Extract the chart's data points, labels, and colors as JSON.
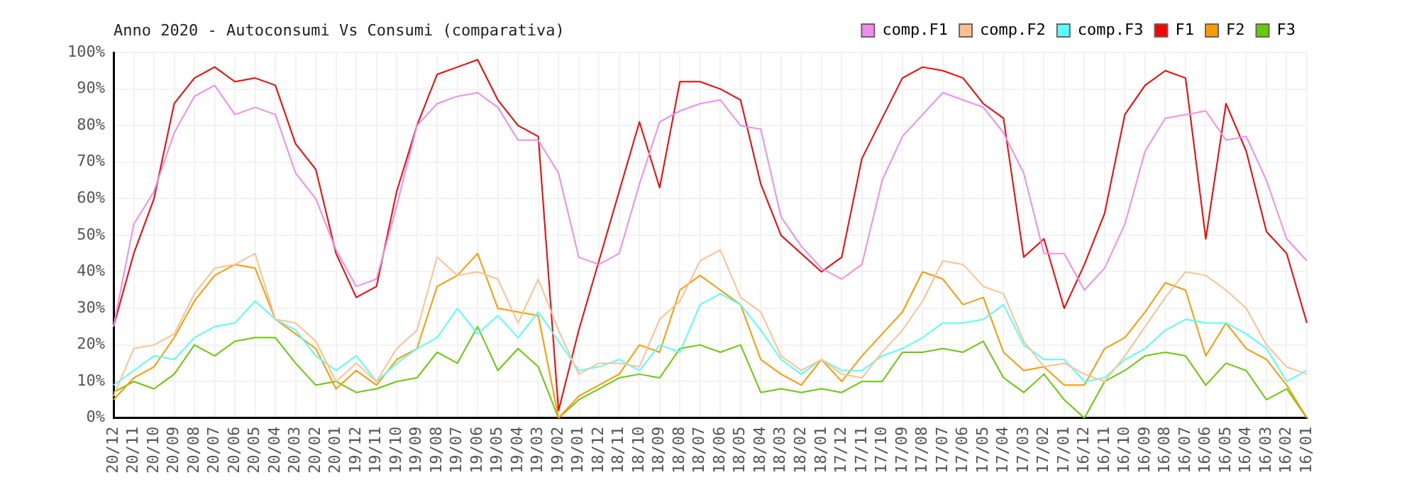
{
  "chart_data": {
    "type": "line",
    "title": "Anno 2020 - Autoconsumi Vs Consumi (comparativa)",
    "categories": [
      "20/12",
      "20/11",
      "20/10",
      "20/09",
      "20/08",
      "20/07",
      "20/06",
      "20/05",
      "20/04",
      "20/03",
      "20/02",
      "20/01",
      "19/12",
      "19/11",
      "19/10",
      "19/09",
      "19/08",
      "19/07",
      "19/06",
      "19/05",
      "19/04",
      "19/03",
      "19/02",
      "19/01",
      "18/12",
      "18/11",
      "18/10",
      "18/09",
      "18/08",
      "18/07",
      "18/06",
      "18/05",
      "18/04",
      "18/03",
      "18/02",
      "18/01",
      "17/12",
      "17/11",
      "17/10",
      "17/09",
      "17/08",
      "17/07",
      "17/06",
      "17/05",
      "17/04",
      "17/03",
      "17/02",
      "17/01",
      "16/12",
      "16/11",
      "16/10",
      "16/09",
      "16/08",
      "16/07",
      "16/06",
      "16/05",
      "16/04",
      "16/03",
      "16/02",
      "16/01"
    ],
    "series": [
      {
        "name": "comp.F1",
        "color": "#f08cf0",
        "values": [
          25,
          53,
          62,
          78,
          88,
          91,
          83,
          85,
          83,
          67,
          60,
          46,
          36,
          38,
          58,
          80,
          86,
          88,
          89,
          85,
          76,
          76,
          67,
          44,
          42,
          45,
          64,
          81,
          84,
          86,
          87,
          80,
          79,
          55,
          47,
          41,
          38,
          42,
          65,
          77,
          83,
          89,
          87,
          85,
          78,
          67,
          45,
          45,
          35,
          41,
          53,
          73,
          82,
          83,
          84,
          76,
          77,
          65,
          49,
          43
        ]
      },
      {
        "name": "comp.F2",
        "color": "#ffc090",
        "values": [
          6,
          19,
          20,
          23,
          34,
          41,
          42,
          45,
          27,
          26,
          21,
          10,
          15,
          10,
          19,
          24,
          44,
          39,
          40,
          38,
          26,
          38,
          24,
          12,
          15,
          15,
          14,
          27,
          32,
          43,
          46,
          33,
          29,
          17,
          13,
          16,
          12,
          11,
          18,
          24,
          32,
          43,
          42,
          36,
          34,
          21,
          14,
          15,
          12,
          10,
          17,
          25,
          33,
          40,
          39,
          35,
          30,
          20,
          14,
          12
        ]
      },
      {
        "name": "comp.F3",
        "color": "#55ffff",
        "values": [
          9,
          13,
          17,
          16,
          22,
          25,
          26,
          32,
          27,
          24,
          17,
          13,
          17,
          10,
          15,
          19,
          22,
          30,
          23,
          28,
          22,
          29,
          21,
          13,
          14,
          16,
          13,
          20,
          18,
          31,
          34,
          31,
          24,
          16,
          12,
          16,
          13,
          13,
          17,
          19,
          22,
          26,
          26,
          27,
          31,
          20,
          16,
          16,
          10,
          11,
          16,
          19,
          24,
          27,
          26,
          26,
          23,
          19,
          10,
          13
        ]
      },
      {
        "name": "F1",
        "color": "#ff0000",
        "values": [
          25,
          45,
          60,
          86,
          93,
          96,
          92,
          93,
          91,
          75,
          68,
          45,
          33,
          36,
          62,
          80,
          94,
          96,
          98,
          87,
          80,
          77,
          2,
          24,
          43,
          62,
          81,
          63,
          92,
          92,
          90,
          87,
          64,
          50,
          45,
          40,
          44,
          71,
          82,
          93,
          96,
          95,
          93,
          86,
          82,
          44,
          49,
          30,
          42,
          56,
          83,
          91,
          95,
          93,
          49,
          86,
          73,
          51,
          45,
          26
        ]
      },
      {
        "name": "F2",
        "color": "#ff9900",
        "values": [
          5,
          11,
          14,
          22,
          32,
          39,
          42,
          41,
          27,
          23,
          19,
          8,
          13,
          9,
          16,
          19,
          36,
          39,
          45,
          30,
          29,
          28,
          0,
          6,
          9,
          12,
          20,
          18,
          35,
          39,
          35,
          31,
          16,
          12,
          9,
          16,
          10,
          17,
          23,
          29,
          40,
          38,
          31,
          33,
          18,
          13,
          14,
          9,
          9,
          19,
          22,
          29,
          37,
          35,
          17,
          26,
          19,
          16,
          9,
          0
        ]
      },
      {
        "name": "F3",
        "color": "#66cc00",
        "values": [
          7,
          10,
          8,
          12,
          20,
          17,
          21,
          22,
          22,
          15,
          9,
          10,
          7,
          8,
          10,
          11,
          18,
          15,
          25,
          13,
          19,
          14,
          0,
          5,
          8,
          11,
          12,
          11,
          19,
          20,
          18,
          20,
          7,
          8,
          7,
          8,
          7,
          10,
          10,
          18,
          18,
          19,
          18,
          21,
          11,
          7,
          12,
          5,
          0,
          10,
          13,
          17,
          18,
          17,
          9,
          15,
          13,
          5,
          8,
          0
        ]
      }
    ],
    "ylim": [
      0,
      100
    ],
    "yticks": [
      {
        "value": 0,
        "label": "0%"
      },
      {
        "value": 10,
        "label": "10%"
      },
      {
        "value": 20,
        "label": "20%"
      },
      {
        "value": 30,
        "label": "30%"
      },
      {
        "value": 40,
        "label": "40%"
      },
      {
        "value": 50,
        "label": "50%"
      },
      {
        "value": 60,
        "label": "60%"
      },
      {
        "value": 70,
        "label": "70%"
      },
      {
        "value": 80,
        "label": "80%"
      },
      {
        "value": 90,
        "label": "90%"
      },
      {
        "value": 100,
        "label": "100%"
      }
    ],
    "grid": true,
    "legend": "top right",
    "marker": "none"
  }
}
